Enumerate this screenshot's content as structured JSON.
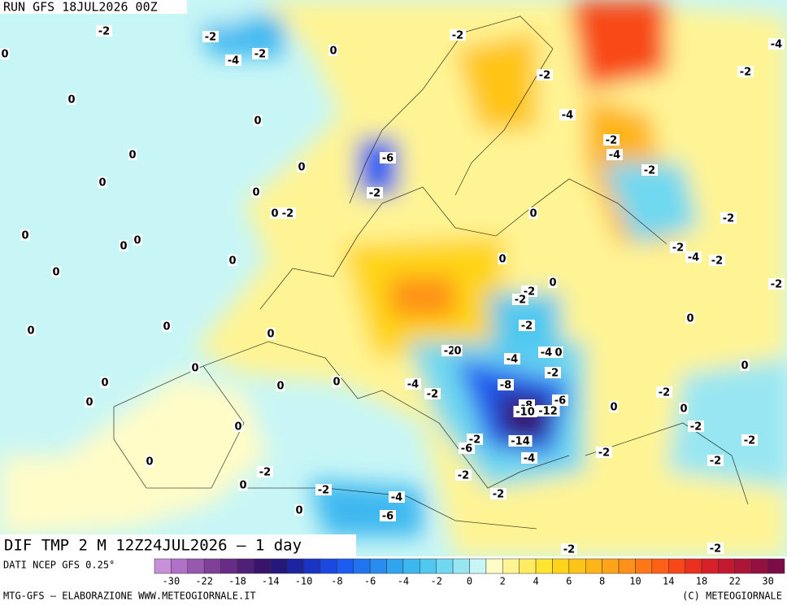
{
  "header": {
    "run": "RUN GFS 18JUL2026 00Z"
  },
  "map": {
    "title": "DIF TMP 2 M 12Z24JUL2026 — 1 day",
    "labels": [
      "-2",
      "-2",
      "-4",
      "-2",
      "0",
      "0",
      "-2",
      "-4",
      "-2",
      "-2",
      "0",
      "0",
      "-4",
      "-2",
      "0",
      "-6",
      "-4",
      "-2",
      "0",
      "0",
      "0",
      "-2",
      "0",
      "-2",
      "0",
      "-2",
      "0",
      "0",
      "0",
      "-2",
      "-4",
      "-2",
      "0",
      "0",
      "0",
      "0",
      "-2",
      "-2",
      "-2",
      "0",
      "0",
      "0",
      "0",
      "-2",
      "-2",
      "0",
      "-4",
      "-4",
      "0",
      "0",
      "0",
      "-2",
      "0",
      "0",
      "0",
      "-4",
      "-2",
      "-8",
      "-2",
      "0",
      "-8",
      "-6",
      "0",
      "0",
      "-10",
      "-12",
      "0",
      "-2",
      "-14",
      "-2",
      "-6",
      "-2",
      "-2",
      "-4",
      "0",
      "-2",
      "-2",
      "-2",
      "0",
      "-2",
      "-2",
      "-4",
      "0",
      "-6",
      "-2",
      "-2"
    ]
  },
  "legend": {
    "source": "DATI NCEP GFS 0.25°",
    "colors": [
      "#c890d8",
      "#b070c8",
      "#9858b0",
      "#804098",
      "#682c88",
      "#502078",
      "#38146c",
      "#24187c",
      "#1c24a0",
      "#1a34c4",
      "#1a48e0",
      "#1c5cf0",
      "#2074f0",
      "#288cf0",
      "#30a4f0",
      "#3cb8f0",
      "#50c8f0",
      "#70d8f0",
      "#98e6f2",
      "#c8f6f6",
      "#fffcc8",
      "#fff494",
      "#ffec60",
      "#ffe430",
      "#ffd418",
      "#ffc418",
      "#ffb418",
      "#ffa418",
      "#ff9018",
      "#ff7818",
      "#ff6018",
      "#f84818",
      "#ec3020",
      "#d82028",
      "#c41830",
      "#ac1438",
      "#941040",
      "#7c0c48"
    ],
    "labels": [
      -30,
      -22,
      -18,
      -14,
      -10,
      -8,
      -6,
      -4,
      -2,
      0,
      2,
      4,
      6,
      8,
      10,
      14,
      18,
      22,
      30
    ]
  },
  "footer": {
    "left": "MTG-GFS — ELABORAZIONE WWW.METEOGIORNALE.IT",
    "right": "(C) METEOGIORNALE"
  }
}
